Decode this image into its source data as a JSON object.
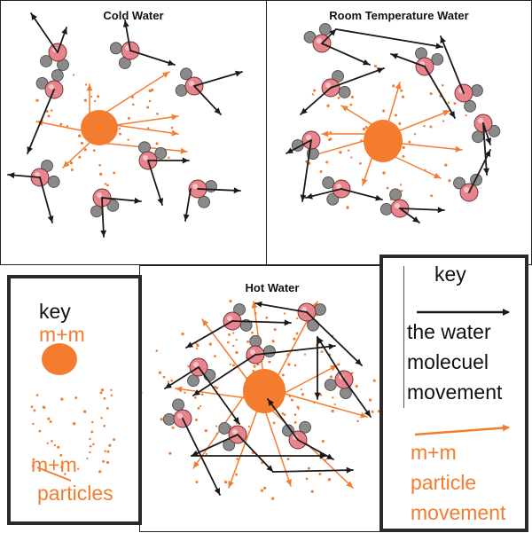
{
  "panels": {
    "cold": {
      "title": "Cold Water"
    },
    "room": {
      "title": "Room Temperature Water"
    },
    "hot": {
      "title": "Hot Water"
    }
  },
  "key_left": {
    "heading": "key",
    "candy_label": "m+m",
    "particles_label_1": "m+m",
    "particles_label_2": "particles"
  },
  "key_right": {
    "heading": "key",
    "water_label_1": "the water",
    "water_label_2": "molecuel",
    "water_label_3": "movement",
    "particle_label_1": "m+m",
    "particle_label_2": "particle",
    "particle_label_3": "movement"
  },
  "colors": {
    "black_arrow": "#1a1a1a",
    "orange": "#f47c2e",
    "oxygen": "#e8848c",
    "hydrogen": "#8a8a8a"
  }
}
